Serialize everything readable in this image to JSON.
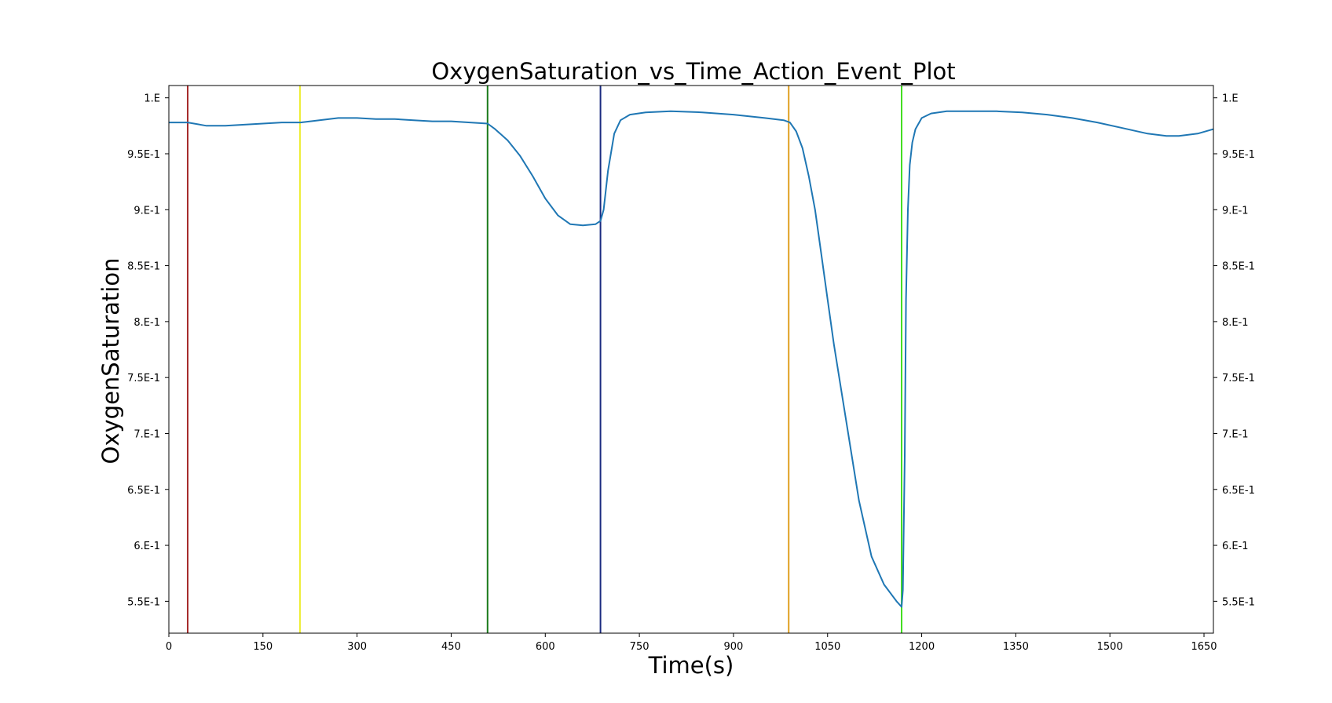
{
  "chart_data": {
    "type": "line",
    "title": "OxygenSaturation_vs_Time_Action_Event_Plot",
    "xlabel": "Time(s)",
    "ylabel": "OxygenSaturation",
    "xlim": [
      0,
      1665
    ],
    "ylim": [
      0.5215,
      1.011
    ],
    "x_ticks": [
      0,
      150,
      300,
      450,
      600,
      750,
      900,
      1050,
      1200,
      1350,
      1500,
      1650
    ],
    "x_tick_labels": [
      "0",
      "150",
      "300",
      "450",
      "600",
      "750",
      "900",
      "1050",
      "1200",
      "1350",
      "1500",
      "1650"
    ],
    "y_ticks": [
      0.55,
      0.6,
      0.65,
      0.7,
      0.75,
      0.8,
      0.85,
      0.9,
      0.95,
      1.0
    ],
    "y_tick_labels": [
      "5.5E-1",
      "6.E-1",
      "6.5E-1",
      "7.E-1",
      "7.5E-1",
      "8.E-1",
      "8.5E-1",
      "9.E-1",
      "9.5E-1",
      "1.E"
    ],
    "grid": false,
    "line_color": "#1f77b4",
    "series": [
      {
        "x": [
          0,
          30,
          40,
          60,
          90,
          120,
          150,
          180,
          210,
          240,
          270,
          300,
          330,
          360,
          390,
          420,
          450,
          480,
          508,
          520,
          540,
          560,
          580,
          600,
          620,
          640,
          660,
          680,
          688,
          693,
          700,
          710,
          720,
          735,
          760,
          800,
          850,
          900,
          950,
          980,
          990,
          1000,
          1010,
          1020,
          1030,
          1040,
          1050,
          1060,
          1080,
          1100,
          1120,
          1140,
          1160,
          1168,
          1170,
          1173,
          1175,
          1178,
          1181,
          1185,
          1190,
          1200,
          1215,
          1240,
          1280,
          1320,
          1360,
          1400,
          1440,
          1480,
          1520,
          1560,
          1590,
          1610,
          1640,
          1665
        ],
        "y": [
          0.978,
          0.978,
          0.977,
          0.975,
          0.975,
          0.976,
          0.977,
          0.978,
          0.978,
          0.98,
          0.982,
          0.982,
          0.981,
          0.981,
          0.98,
          0.979,
          0.979,
          0.978,
          0.977,
          0.972,
          0.962,
          0.948,
          0.93,
          0.91,
          0.895,
          0.887,
          0.886,
          0.887,
          0.89,
          0.9,
          0.935,
          0.968,
          0.98,
          0.985,
          0.987,
          0.988,
          0.987,
          0.985,
          0.982,
          0.98,
          0.978,
          0.97,
          0.955,
          0.93,
          0.9,
          0.86,
          0.82,
          0.78,
          0.71,
          0.64,
          0.59,
          0.565,
          0.55,
          0.545,
          0.56,
          0.68,
          0.82,
          0.9,
          0.94,
          0.96,
          0.972,
          0.982,
          0.986,
          0.988,
          0.988,
          0.988,
          0.987,
          0.985,
          0.982,
          0.978,
          0.973,
          0.968,
          0.966,
          0.966,
          0.968,
          0.972
        ]
      }
    ],
    "events": [
      {
        "x": 30,
        "color": "#a52a2a"
      },
      {
        "x": 209,
        "color": "#eeee33"
      },
      {
        "x": 508,
        "color": "#1a7a1a"
      },
      {
        "x": 688,
        "color": "#1a2a80"
      },
      {
        "x": 988,
        "color": "#e0a020"
      },
      {
        "x": 1168,
        "color": "#44dd22"
      }
    ]
  }
}
